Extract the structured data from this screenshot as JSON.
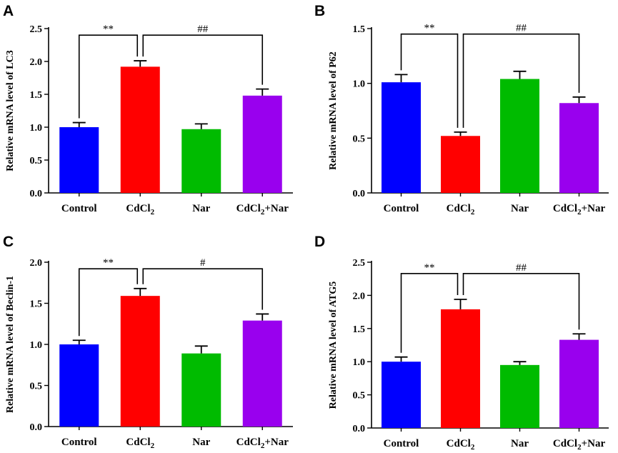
{
  "chart_data": [
    {
      "type": "bar",
      "panel": "A",
      "ylabel": "Relative mRNA level of LC3",
      "categories": [
        "Control",
        "CdCl₂",
        "Nar",
        "CdCl₂+Nar"
      ],
      "values": [
        1.0,
        1.92,
        0.97,
        1.48
      ],
      "errors": [
        0.07,
        0.09,
        0.08,
        0.1
      ],
      "colors": [
        "#0000ff",
        "#ff0000",
        "#00bb00",
        "#9900ee"
      ],
      "ylim": [
        0,
        2.5
      ],
      "yticks": [
        "0.0",
        "0.5",
        "1.0",
        "1.5",
        "2.0",
        "2.5"
      ],
      "significance": [
        {
          "from": 0,
          "to": 1,
          "label": "**",
          "y": 2.4
        },
        {
          "from": 1,
          "to": 3,
          "label": "##",
          "y": 2.4
        }
      ]
    },
    {
      "type": "bar",
      "panel": "B",
      "ylabel": "Relative mRNA level of P62",
      "categories": [
        "Control",
        "CdCl₂",
        "Nar",
        "CdCl₂+Nar"
      ],
      "values": [
        1.01,
        0.52,
        1.04,
        0.82
      ],
      "errors": [
        0.07,
        0.035,
        0.07,
        0.055
      ],
      "colors": [
        "#0000ff",
        "#ff0000",
        "#00bb00",
        "#9900ee"
      ],
      "ylim": [
        0,
        1.5
      ],
      "yticks": [
        "0.0",
        "0.5",
        "1.0",
        "1.5"
      ],
      "significance": [
        {
          "from": 0,
          "to": 1,
          "label": "**",
          "y": 1.45
        },
        {
          "from": 1,
          "to": 3,
          "label": "##",
          "y": 1.45
        }
      ]
    },
    {
      "type": "bar",
      "panel": "C",
      "ylabel": "Relative mRNA level of Beclin-1",
      "categories": [
        "Control",
        "CdCl₂",
        "Nar",
        "CdCl₂+Nar"
      ],
      "values": [
        1.0,
        1.59,
        0.89,
        1.29
      ],
      "errors": [
        0.05,
        0.09,
        0.09,
        0.08
      ],
      "colors": [
        "#0000ff",
        "#ff0000",
        "#00bb00",
        "#9900ee"
      ],
      "ylim": [
        0,
        2.0
      ],
      "yticks": [
        "0.0",
        "0.5",
        "1.0",
        "1.5",
        "2.0"
      ],
      "significance": [
        {
          "from": 0,
          "to": 1,
          "label": "**",
          "y": 1.92
        },
        {
          "from": 1,
          "to": 3,
          "label": "#",
          "y": 1.92
        }
      ]
    },
    {
      "type": "bar",
      "panel": "D",
      "ylabel": "Relative mRNA level of ATG5",
      "categories": [
        "Control",
        "CdCl₂",
        "Nar",
        "CdCl₂+Nar"
      ],
      "values": [
        1.0,
        1.79,
        0.95,
        1.33
      ],
      "errors": [
        0.07,
        0.15,
        0.05,
        0.09
      ],
      "colors": [
        "#0000ff",
        "#ff0000",
        "#00bb00",
        "#9900ee"
      ],
      "ylim": [
        0,
        2.5
      ],
      "yticks": [
        "0.0",
        "0.5",
        "1.0",
        "1.5",
        "2.0",
        "2.5"
      ],
      "significance": [
        {
          "from": 0,
          "to": 1,
          "label": "**",
          "y": 2.33
        },
        {
          "from": 1,
          "to": 3,
          "label": "##",
          "y": 2.33
        }
      ]
    }
  ]
}
